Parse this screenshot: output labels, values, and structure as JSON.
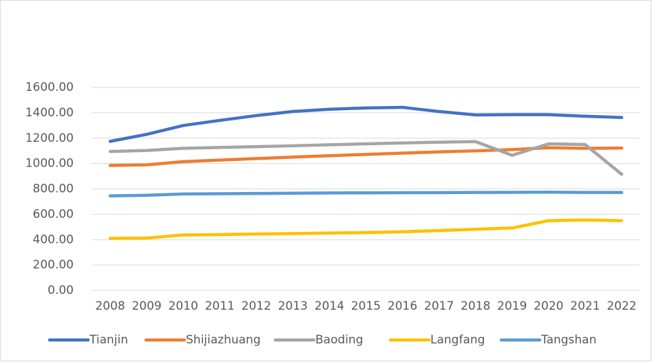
{
  "chart_data": {
    "type": "line",
    "categories": [
      "2008",
      "2009",
      "2010",
      "2011",
      "2012",
      "2013",
      "2014",
      "2015",
      "2016",
      "2017",
      "2018",
      "2019",
      "2020",
      "2021",
      "2022"
    ],
    "series": [
      {
        "name": "Tianjin",
        "color": "#4472c4",
        "values": [
          1175,
          1230,
          1300,
          1340,
          1378,
          1410,
          1428,
          1438,
          1443,
          1410,
          1383,
          1385,
          1385,
          1373,
          1363
        ]
      },
      {
        "name": "Shijiazhuang",
        "color": "#ed7d31",
        "values": [
          985,
          990,
          1015,
          1027,
          1039,
          1051,
          1062,
          1072,
          1082,
          1092,
          1100,
          1110,
          1125,
          1120,
          1122
        ]
      },
      {
        "name": "Baoding",
        "color": "#a5a5a5",
        "values": [
          1095,
          1103,
          1120,
          1127,
          1133,
          1140,
          1148,
          1155,
          1162,
          1168,
          1173,
          1065,
          1155,
          1150,
          915
        ]
      },
      {
        "name": "Langfang",
        "color": "#ffc000",
        "values": [
          410,
          413,
          437,
          440,
          445,
          448,
          452,
          456,
          462,
          472,
          482,
          492,
          550,
          555,
          550
        ]
      },
      {
        "name": "Tangshan",
        "color": "#5b9bd5",
        "values": [
          745,
          750,
          760,
          762,
          764,
          766,
          768,
          769,
          770,
          771,
          772,
          773,
          774,
          772,
          772
        ]
      }
    ],
    "ylim": [
      0,
      1600
    ],
    "yticks": [
      {
        "value": 0,
        "label": "0.00"
      },
      {
        "value": 200,
        "label": "200.00"
      },
      {
        "value": 400,
        "label": "400.00"
      },
      {
        "value": 600,
        "label": "600.00"
      },
      {
        "value": 800,
        "label": "800.00"
      },
      {
        "value": 1000,
        "label": "1000.00"
      },
      {
        "value": 1200,
        "label": "1200.00"
      },
      {
        "value": 1400,
        "label": "1400.00"
      },
      {
        "value": 1600,
        "label": "1600.00"
      }
    ],
    "grid": true,
    "legend": "bottom"
  }
}
